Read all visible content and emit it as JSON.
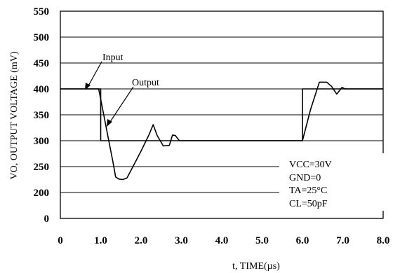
{
  "chart_data": {
    "type": "line",
    "xlabel": "t, TIME(µs)",
    "ylabel": "VO, OUTPUT VOLTAGE (mV)",
    "xlim": [
      0,
      8
    ],
    "ylim": [
      0,
      550
    ],
    "grid": "horizontal",
    "x_ticks": [
      "0",
      "1.0",
      "2.0",
      "3.0",
      "4.0",
      "5.0",
      "6.0",
      "7.0",
      "8.0"
    ],
    "y_ticks": [
      "0",
      "200",
      "250",
      "300",
      "350",
      "400",
      "450",
      "500",
      "550"
    ],
    "series": [
      {
        "name": "Input",
        "points": [
          [
            0,
            400
          ],
          [
            1.0,
            400
          ],
          [
            1.0,
            300
          ],
          [
            6.0,
            300
          ],
          [
            6.0,
            400
          ],
          [
            8.0,
            400
          ]
        ]
      },
      {
        "name": "Output",
        "points": [
          [
            0,
            400
          ],
          [
            0.95,
            400
          ],
          [
            1.05,
            360
          ],
          [
            1.2,
            300
          ],
          [
            1.3,
            260
          ],
          [
            1.37,
            230
          ],
          [
            1.45,
            226
          ],
          [
            1.55,
            225
          ],
          [
            1.65,
            228
          ],
          [
            1.8,
            250
          ],
          [
            2.0,
            280
          ],
          [
            2.2,
            312
          ],
          [
            2.3,
            331
          ],
          [
            2.4,
            310
          ],
          [
            2.55,
            290
          ],
          [
            2.7,
            291
          ],
          [
            2.78,
            311
          ],
          [
            2.85,
            310
          ],
          [
            2.95,
            300
          ],
          [
            3.0,
            300
          ],
          [
            6.0,
            300
          ],
          [
            6.2,
            360
          ],
          [
            6.42,
            413
          ],
          [
            6.6,
            413
          ],
          [
            6.72,
            405
          ],
          [
            6.85,
            390
          ],
          [
            6.98,
            403
          ],
          [
            7.05,
            400
          ],
          [
            8.0,
            400
          ]
        ]
      }
    ],
    "annotations": {
      "input_label": "Input",
      "output_label": "Output",
      "conditions": {
        "vcc": "VCC=30V",
        "gnd": "GND=0",
        "ta": "TA=25°C",
        "cl": "CL=50pF"
      }
    }
  }
}
